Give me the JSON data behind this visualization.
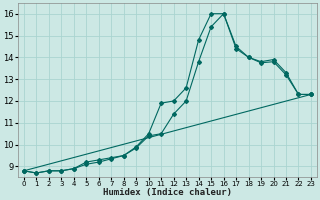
{
  "title": "",
  "xlabel": "Humidex (Indice chaleur)",
  "bg_color": "#cce8e4",
  "grid_color": "#aad4d0",
  "line_color": "#006860",
  "xlim": [
    -0.5,
    23.5
  ],
  "ylim": [
    8.5,
    16.5
  ],
  "xticks": [
    0,
    1,
    2,
    3,
    4,
    5,
    6,
    7,
    8,
    9,
    10,
    11,
    12,
    13,
    14,
    15,
    16,
    17,
    18,
    19,
    20,
    21,
    22,
    23
  ],
  "yticks": [
    9,
    10,
    11,
    12,
    13,
    14,
    15,
    16
  ],
  "line1_x": [
    0,
    1,
    2,
    3,
    4,
    5,
    6,
    7,
    8,
    9,
    10,
    11,
    12,
    13,
    14,
    15,
    16,
    17,
    18,
    19,
    20,
    21,
    22,
    23
  ],
  "line1_y": [
    8.8,
    8.7,
    8.8,
    8.8,
    8.9,
    9.2,
    9.3,
    9.4,
    9.5,
    9.9,
    10.5,
    11.9,
    12.0,
    12.6,
    14.8,
    16.0,
    16.0,
    14.5,
    14.0,
    13.8,
    13.9,
    13.3,
    12.3,
    12.3
  ],
  "line2_x": [
    0,
    1,
    2,
    3,
    4,
    5,
    6,
    7,
    8,
    9,
    10,
    11,
    12,
    13,
    14,
    15,
    16,
    17,
    18,
    19,
    20,
    21,
    22,
    23
  ],
  "line2_y": [
    8.8,
    8.7,
    8.8,
    8.8,
    8.9,
    9.1,
    9.2,
    9.35,
    9.5,
    9.85,
    10.4,
    10.5,
    11.4,
    12.0,
    13.8,
    15.4,
    16.0,
    14.4,
    14.0,
    13.75,
    13.8,
    13.2,
    12.3,
    12.3
  ],
  "line3_x": [
    0,
    23
  ],
  "line3_y": [
    8.8,
    12.3
  ]
}
